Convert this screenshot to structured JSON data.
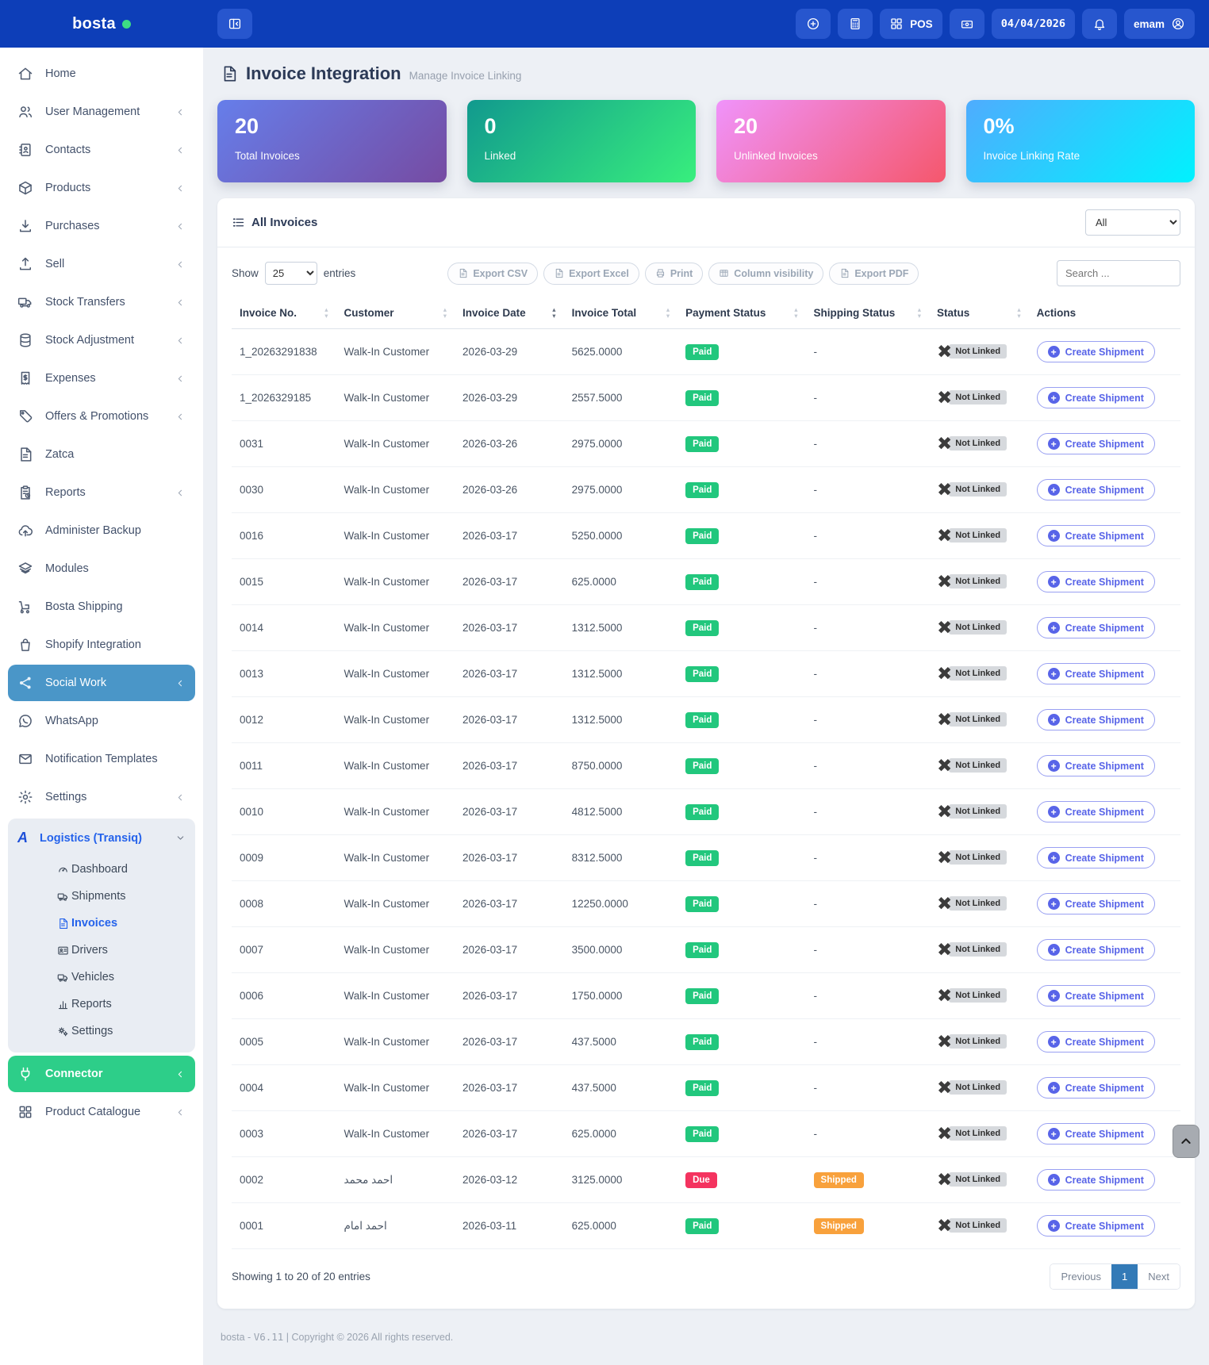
{
  "topbar": {
    "brand": "bosta",
    "pos_label": "POS",
    "date": "04/04/2026",
    "user": "emam"
  },
  "page": {
    "title": "Invoice Integration",
    "subtitle": "Manage Invoice Linking",
    "footer_prefix": "bosta - ",
    "footer_version": "V6.11",
    "footer_suffix": " | Copyright © 2026 All rights reserved."
  },
  "stats": [
    {
      "value": "20",
      "label": "Total Invoices",
      "gradient": [
        "#667eea",
        "#764ba2"
      ]
    },
    {
      "value": "0",
      "label": "Linked",
      "gradient": [
        "#11998e",
        "#38ef7d"
      ]
    },
    {
      "value": "20",
      "label": "Unlinked Invoices",
      "gradient": [
        "#f093fb",
        "#f5576c"
      ]
    },
    {
      "value": "0%",
      "label": "Invoice Linking Rate",
      "gradient": [
        "#4facfe",
        "#00f2fe"
      ]
    }
  ],
  "sidebar": {
    "items": [
      {
        "label": "Home",
        "icon": "home"
      },
      {
        "label": "User Management",
        "icon": "users",
        "chevron": true
      },
      {
        "label": "Contacts",
        "icon": "contacts",
        "chevron": true
      },
      {
        "label": "Products",
        "icon": "box",
        "chevron": true
      },
      {
        "label": "Purchases",
        "icon": "download",
        "chevron": true
      },
      {
        "label": "Sell",
        "icon": "upload",
        "chevron": true
      },
      {
        "label": "Stock Transfers",
        "icon": "truck",
        "chevron": true
      },
      {
        "label": "Stock Adjustment",
        "icon": "cylinder",
        "chevron": true
      },
      {
        "label": "Expenses",
        "icon": "receipt",
        "chevron": true
      },
      {
        "label": "Offers & Promotions",
        "icon": "tag",
        "chevron": true
      },
      {
        "label": "Zatca",
        "icon": "file"
      },
      {
        "label": "Reports",
        "icon": "clipboard",
        "chevron": true
      },
      {
        "label": "Administer Backup",
        "icon": "cloudup"
      },
      {
        "label": "Modules",
        "icon": "layers"
      },
      {
        "label": "Bosta Shipping",
        "icon": "trolley"
      },
      {
        "label": "Shopify Integration",
        "icon": "bag"
      },
      {
        "label": "Social Work",
        "icon": "share",
        "chevron": true,
        "variant": "steel"
      },
      {
        "label": "WhatsApp",
        "icon": "whatsapp"
      },
      {
        "label": "Notification Templates",
        "icon": "envelope"
      },
      {
        "label": "Settings",
        "icon": "gear",
        "chevron": true
      },
      {
        "label": "Logistics (Transiq)",
        "icon": "logo-a",
        "variant": "group",
        "expanded": true,
        "children": [
          {
            "label": "Dashboard",
            "icon": "dashboard"
          },
          {
            "label": "Shipments",
            "icon": "truck"
          },
          {
            "label": "Invoices",
            "icon": "file",
            "active": true
          },
          {
            "label": "Drivers",
            "icon": "idcard"
          },
          {
            "label": "Vehicles",
            "icon": "truck"
          },
          {
            "label": "Reports",
            "icon": "chart"
          },
          {
            "label": "Settings",
            "icon": "cogs"
          }
        ]
      },
      {
        "label": "Connector",
        "icon": "plug",
        "chevron": true,
        "variant": "green"
      },
      {
        "label": "Product Catalogue",
        "icon": "grid",
        "chevron": true
      }
    ]
  },
  "panel": {
    "title": "All Invoices",
    "filter_value": "All",
    "show_label": "Show",
    "page_size": "25",
    "entries_label": "entries",
    "buttons": [
      {
        "label": "Export CSV",
        "icon": "file"
      },
      {
        "label": "Export Excel",
        "icon": "file"
      },
      {
        "label": "Print",
        "icon": "print"
      },
      {
        "label": "Column visibility",
        "icon": "columns"
      },
      {
        "label": "Export PDF",
        "icon": "file"
      }
    ],
    "search_placeholder": "Search ...",
    "showing_text": "Showing 1 to 20 of 20 entries",
    "pagination": {
      "previous": "Previous",
      "page": "1",
      "next": "Next"
    }
  },
  "table": {
    "columns": [
      {
        "label": "Invoice No.",
        "sortable": true
      },
      {
        "label": "Customer",
        "sortable": true
      },
      {
        "label": "Invoice Date",
        "sortable": true,
        "sorted": true
      },
      {
        "label": "Invoice Total",
        "sortable": true
      },
      {
        "label": "Payment Status",
        "sortable": true
      },
      {
        "label": "Shipping Status",
        "sortable": true
      },
      {
        "label": "Status",
        "sortable": true
      },
      {
        "label": "Actions",
        "sortable": false
      }
    ],
    "status_label": "Not Linked",
    "action_label": "Create Shipment",
    "rows": [
      {
        "no": "1_20263291838",
        "customer": "Walk-In Customer",
        "date": "2026-03-29",
        "total": "5625.0000",
        "payment": "Paid",
        "shipping": "-"
      },
      {
        "no": "1_2026329185",
        "customer": "Walk-In Customer",
        "date": "2026-03-29",
        "total": "2557.5000",
        "payment": "Paid",
        "shipping": "-"
      },
      {
        "no": "0031",
        "customer": "Walk-In Customer",
        "date": "2026-03-26",
        "total": "2975.0000",
        "payment": "Paid",
        "shipping": "-"
      },
      {
        "no": "0030",
        "customer": "Walk-In Customer",
        "date": "2026-03-26",
        "total": "2975.0000",
        "payment": "Paid",
        "shipping": "-"
      },
      {
        "no": "0016",
        "customer": "Walk-In Customer",
        "date": "2026-03-17",
        "total": "5250.0000",
        "payment": "Paid",
        "shipping": "-"
      },
      {
        "no": "0015",
        "customer": "Walk-In Customer",
        "date": "2026-03-17",
        "total": "625.0000",
        "payment": "Paid",
        "shipping": "-"
      },
      {
        "no": "0014",
        "customer": "Walk-In Customer",
        "date": "2026-03-17",
        "total": "1312.5000",
        "payment": "Paid",
        "shipping": "-"
      },
      {
        "no": "0013",
        "customer": "Walk-In Customer",
        "date": "2026-03-17",
        "total": "1312.5000",
        "payment": "Paid",
        "shipping": "-"
      },
      {
        "no": "0012",
        "customer": "Walk-In Customer",
        "date": "2026-03-17",
        "total": "1312.5000",
        "payment": "Paid",
        "shipping": "-"
      },
      {
        "no": "0011",
        "customer": "Walk-In Customer",
        "date": "2026-03-17",
        "total": "8750.0000",
        "payment": "Paid",
        "shipping": "-"
      },
      {
        "no": "0010",
        "customer": "Walk-In Customer",
        "date": "2026-03-17",
        "total": "4812.5000",
        "payment": "Paid",
        "shipping": "-"
      },
      {
        "no": "0009",
        "customer": "Walk-In Customer",
        "date": "2026-03-17",
        "total": "8312.5000",
        "payment": "Paid",
        "shipping": "-"
      },
      {
        "no": "0008",
        "customer": "Walk-In Customer",
        "date": "2026-03-17",
        "total": "12250.0000",
        "payment": "Paid",
        "shipping": "-"
      },
      {
        "no": "0007",
        "customer": "Walk-In Customer",
        "date": "2026-03-17",
        "total": "3500.0000",
        "payment": "Paid",
        "shipping": "-"
      },
      {
        "no": "0006",
        "customer": "Walk-In Customer",
        "date": "2026-03-17",
        "total": "1750.0000",
        "payment": "Paid",
        "shipping": "-"
      },
      {
        "no": "0005",
        "customer": "Walk-In Customer",
        "date": "2026-03-17",
        "total": "437.5000",
        "payment": "Paid",
        "shipping": "-"
      },
      {
        "no": "0004",
        "customer": "Walk-In Customer",
        "date": "2026-03-17",
        "total": "437.5000",
        "payment": "Paid",
        "shipping": "-"
      },
      {
        "no": "0003",
        "customer": "Walk-In Customer",
        "date": "2026-03-17",
        "total": "625.0000",
        "payment": "Paid",
        "shipping": "-"
      },
      {
        "no": "0002",
        "customer": "احمد محمد",
        "date": "2026-03-12",
        "total": "3125.0000",
        "payment": "Due",
        "shipping": "Shipped"
      },
      {
        "no": "0001",
        "customer": "احمد امام",
        "date": "2026-03-11",
        "total": "625.0000",
        "payment": "Paid",
        "shipping": "Shipped"
      }
    ]
  },
  "colors": {
    "brand_blue": "#0d3eb8",
    "topbar_btn": "#2756ce",
    "steel": "#4a96c8",
    "connector_green": "#2dce89",
    "paid": "#22c77d",
    "due": "#f4335f",
    "shipped": "#f8a13c",
    "badge_gray": "#d6d9dd",
    "indigo": "#5864e8",
    "indigo_border": "#99a0f2",
    "link_blue": "#2563eb",
    "page_active": "#337ab7"
  }
}
